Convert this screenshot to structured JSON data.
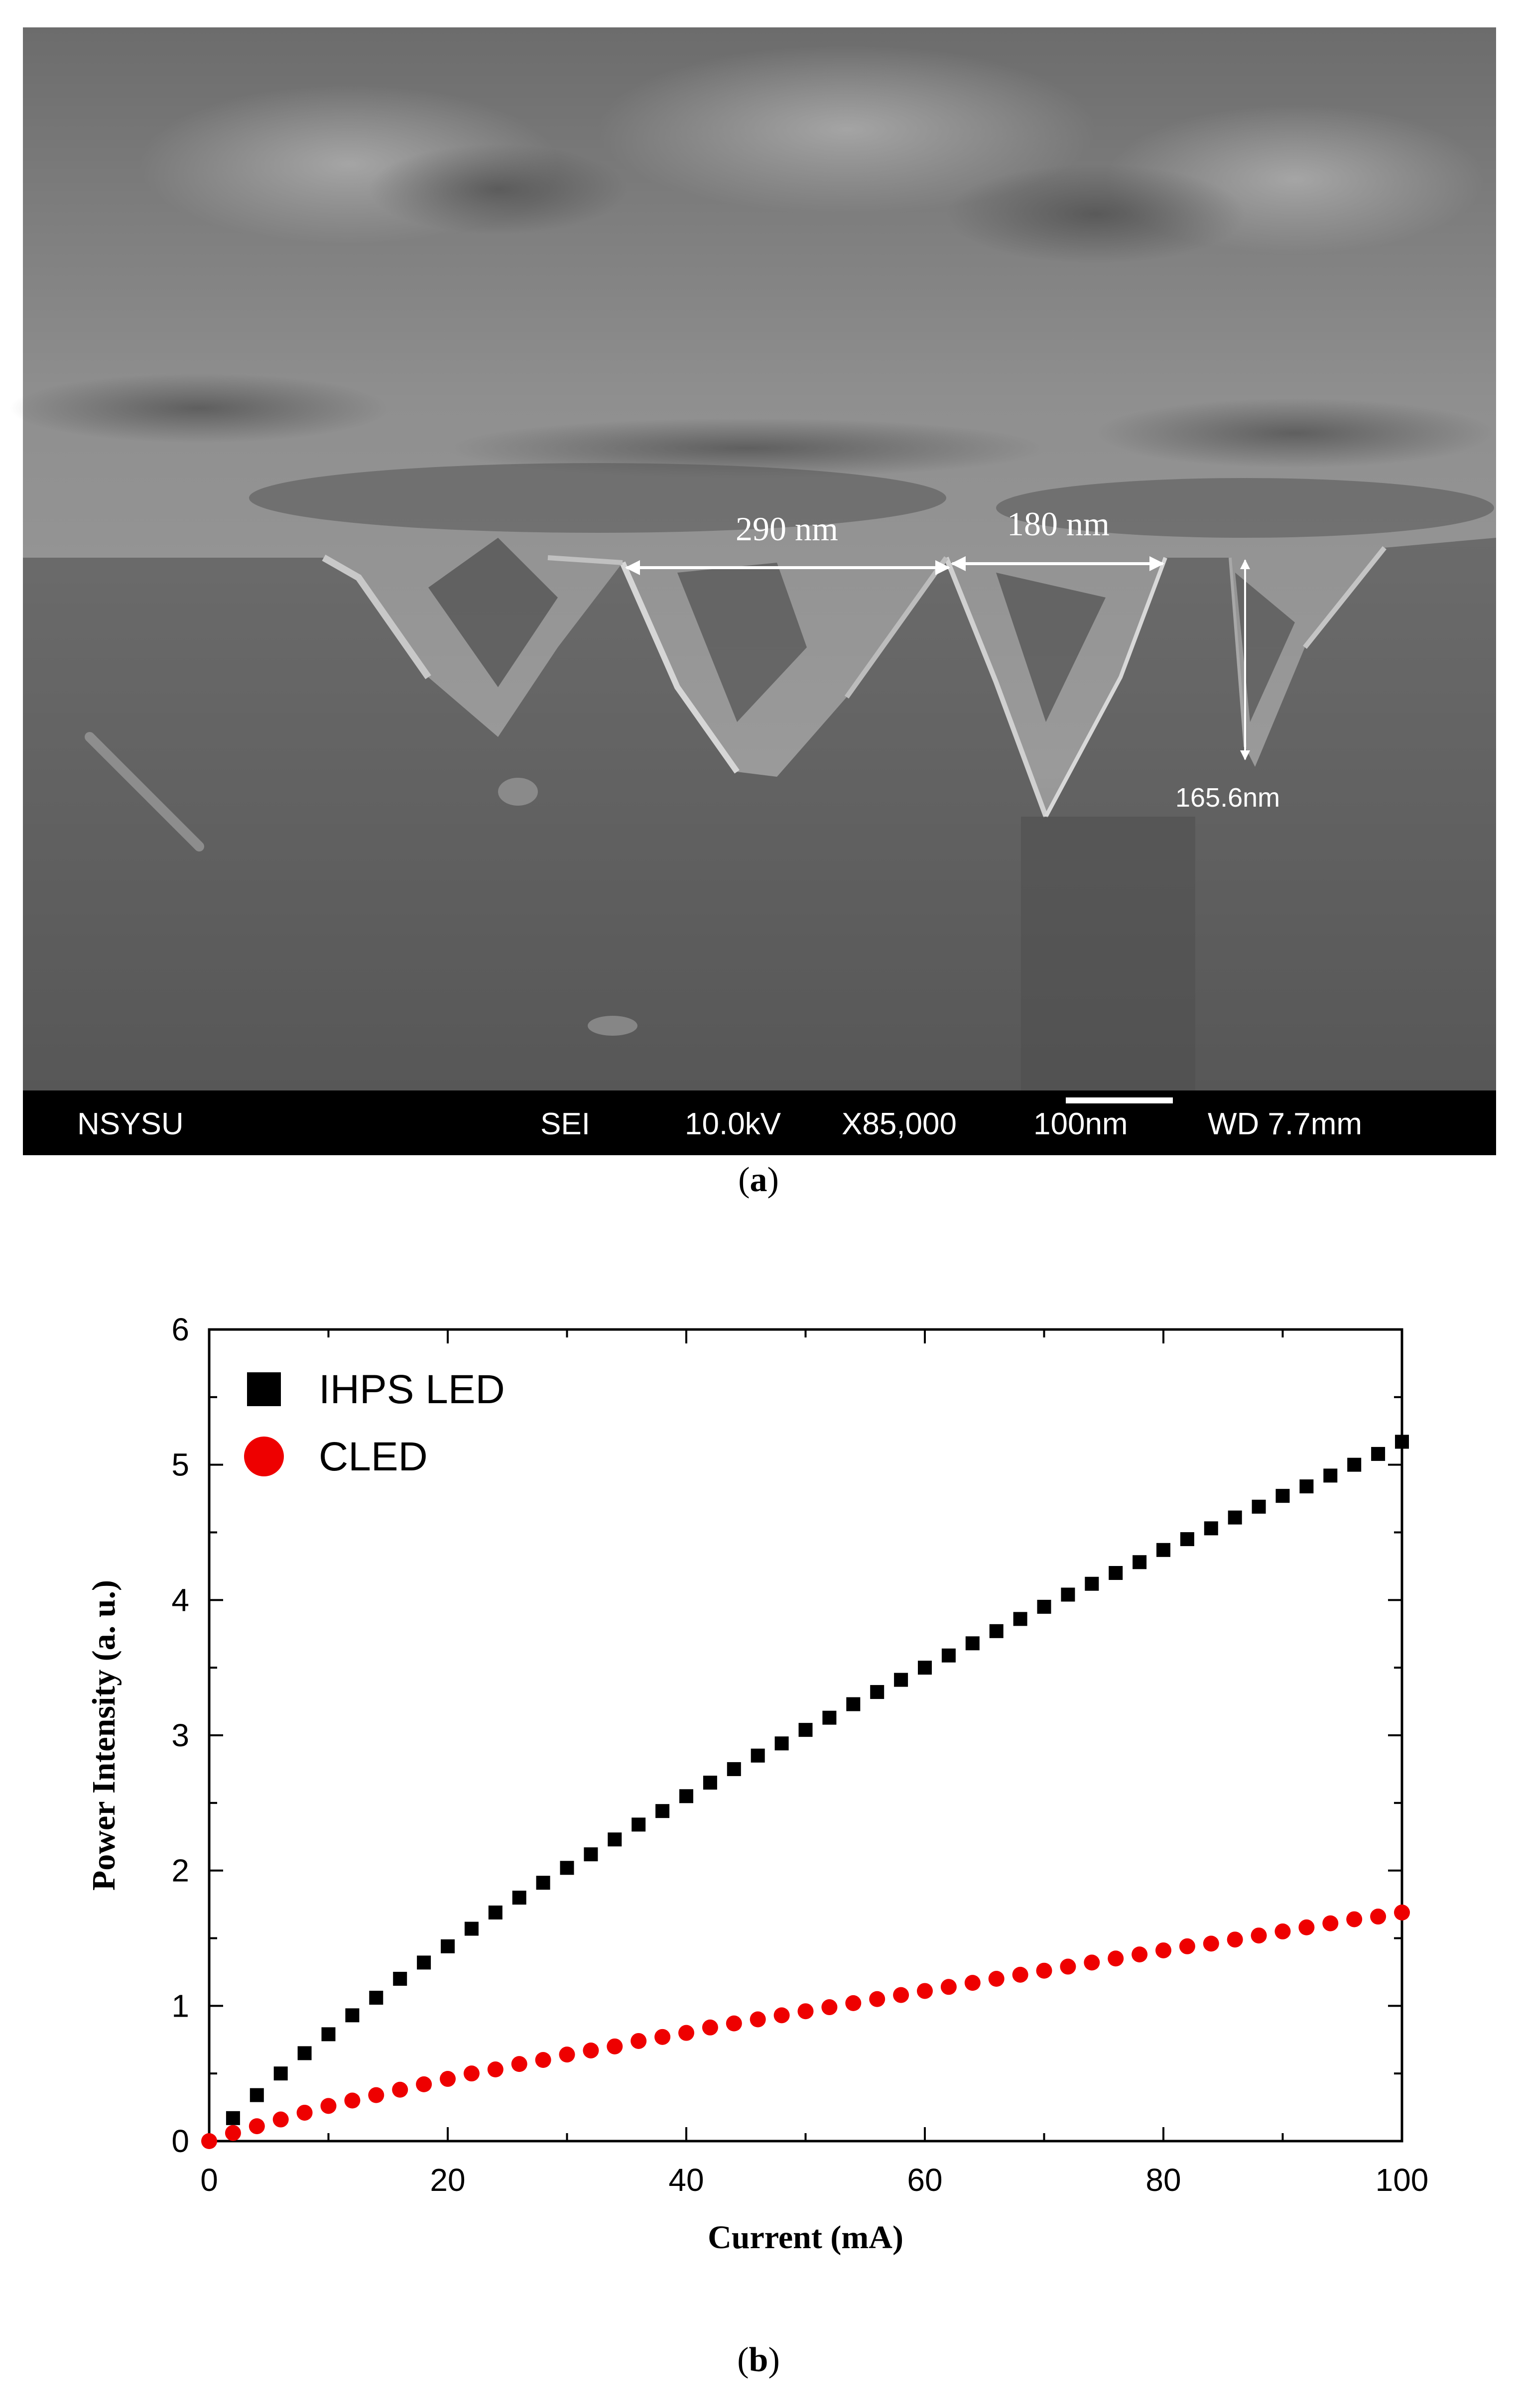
{
  "figure_a": {
    "caption_letter": "a",
    "annotations": {
      "width_1": "290 nm",
      "width_2": "180 nm",
      "depth": "165.6nm"
    },
    "info_bar": {
      "lab": "NSYSU",
      "mode": "SEI",
      "voltage": "10.0kV",
      "magnification": "X85,000",
      "scale": "100nm",
      "working_distance": "WD 7.7mm"
    }
  },
  "figure_b": {
    "caption_letter": "b"
  },
  "chart_data": {
    "type": "scatter",
    "xlabel": "Current (mA)",
    "ylabel": "Power Intensity (a. u.)",
    "xlim": [
      0,
      100
    ],
    "ylim": [
      0,
      6
    ],
    "x_ticks": [
      0,
      20,
      40,
      60,
      80,
      100
    ],
    "y_ticks": [
      0,
      1,
      2,
      3,
      4,
      5,
      6
    ],
    "legend_position": "top-left",
    "series": [
      {
        "name": "IHPS LED",
        "marker": "square",
        "color": "#000000",
        "x": [
          2,
          4,
          6,
          8,
          10,
          12,
          14,
          16,
          18,
          20,
          22,
          24,
          26,
          28,
          30,
          32,
          34,
          36,
          38,
          40,
          42,
          44,
          46,
          48,
          50,
          52,
          54,
          56,
          58,
          60,
          62,
          64,
          66,
          68,
          70,
          72,
          74,
          76,
          78,
          80,
          82,
          84,
          86,
          88,
          90,
          92,
          94,
          96,
          98,
          100
        ],
        "y": [
          0.17,
          0.34,
          0.5,
          0.65,
          0.79,
          0.93,
          1.06,
          1.2,
          1.32,
          1.44,
          1.57,
          1.69,
          1.8,
          1.91,
          2.02,
          2.12,
          2.23,
          2.34,
          2.44,
          2.55,
          2.65,
          2.75,
          2.85,
          2.94,
          3.04,
          3.13,
          3.23,
          3.32,
          3.41,
          3.5,
          3.59,
          3.68,
          3.77,
          3.86,
          3.95,
          4.04,
          4.12,
          4.2,
          4.28,
          4.37,
          4.45,
          4.53,
          4.61,
          4.69,
          4.77,
          4.84,
          4.92,
          5.0,
          5.08,
          5.17
        ]
      },
      {
        "name": "CLED",
        "marker": "circle",
        "color": "#ee0000",
        "x": [
          0,
          2,
          4,
          6,
          8,
          10,
          12,
          14,
          16,
          18,
          20,
          22,
          24,
          26,
          28,
          30,
          32,
          34,
          36,
          38,
          40,
          42,
          44,
          46,
          48,
          50,
          52,
          54,
          56,
          58,
          60,
          62,
          64,
          66,
          68,
          70,
          72,
          74,
          76,
          78,
          80,
          82,
          84,
          86,
          88,
          90,
          92,
          94,
          96,
          98,
          100
        ],
        "y": [
          0.0,
          0.06,
          0.11,
          0.16,
          0.21,
          0.26,
          0.3,
          0.34,
          0.38,
          0.42,
          0.46,
          0.5,
          0.53,
          0.57,
          0.6,
          0.64,
          0.67,
          0.7,
          0.74,
          0.77,
          0.8,
          0.84,
          0.87,
          0.9,
          0.93,
          0.96,
          0.99,
          1.02,
          1.05,
          1.08,
          1.11,
          1.14,
          1.17,
          1.2,
          1.23,
          1.26,
          1.29,
          1.32,
          1.35,
          1.38,
          1.41,
          1.44,
          1.46,
          1.49,
          1.52,
          1.55,
          1.58,
          1.61,
          1.64,
          1.66,
          1.69
        ]
      }
    ]
  }
}
